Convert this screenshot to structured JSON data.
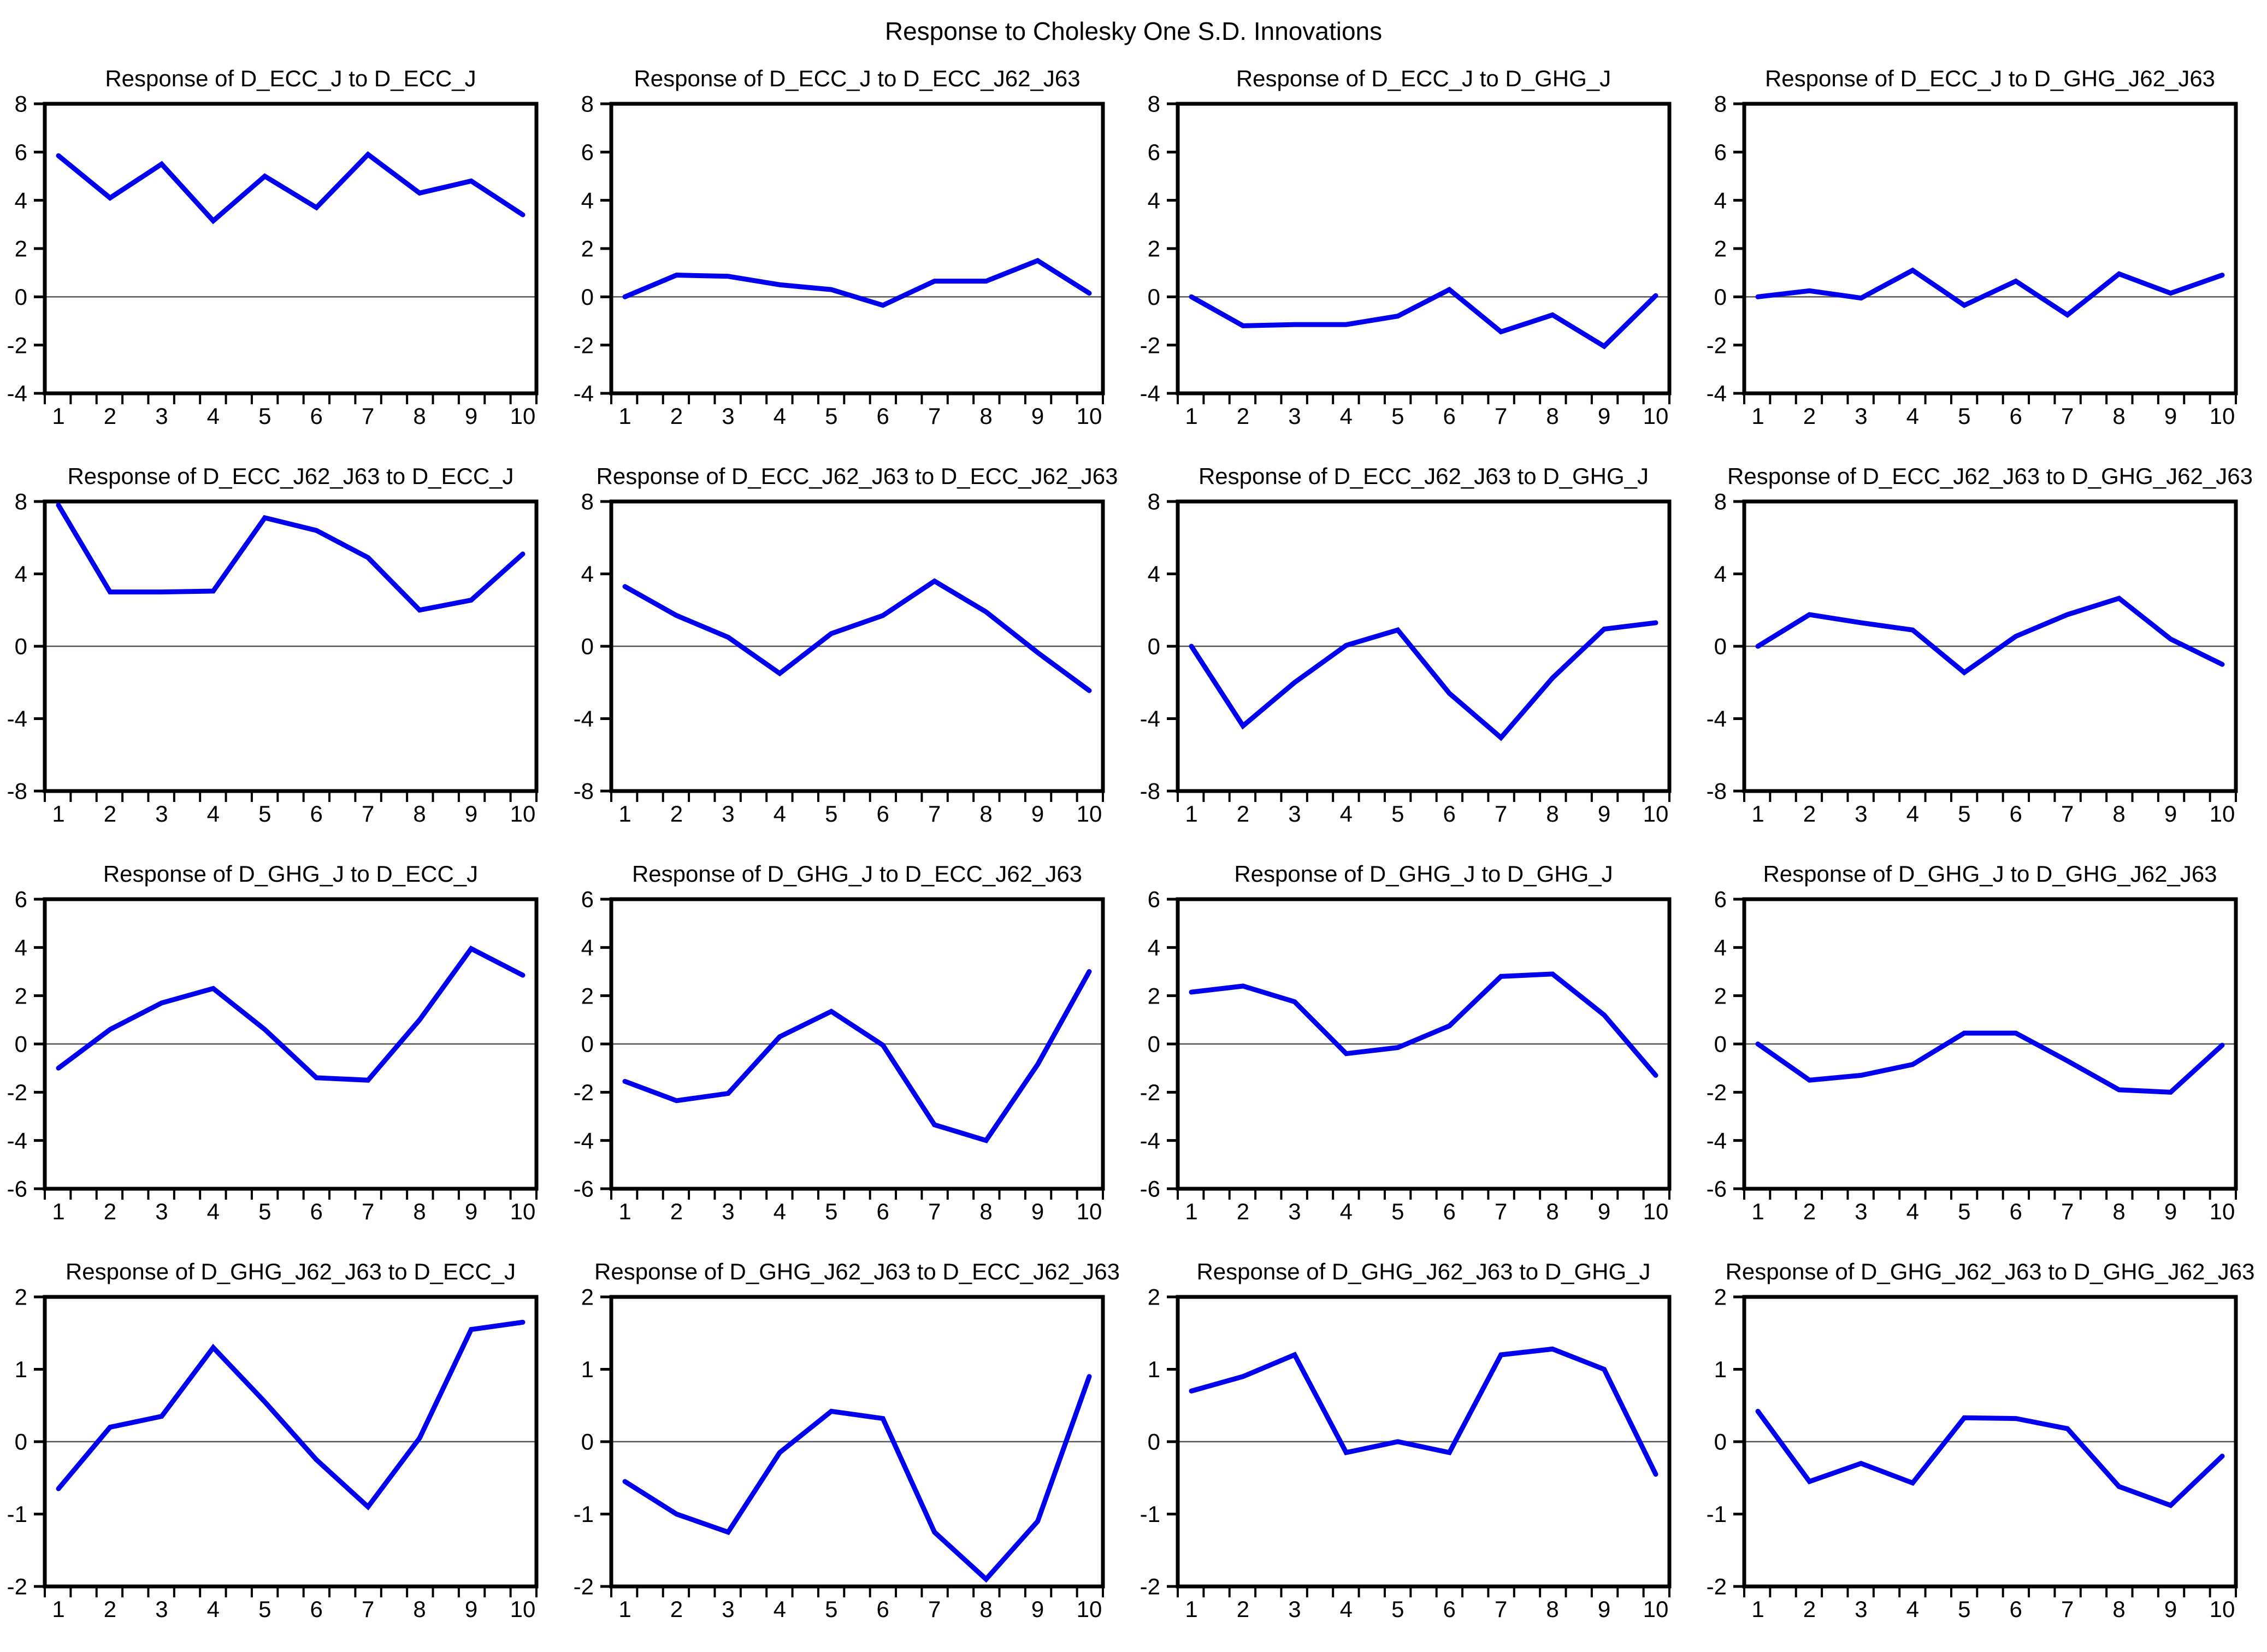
{
  "page_title": "Response to Cholesky One S.D. Innovations",
  "colors": {
    "line": "#0000EE",
    "axis": "#000000",
    "zero_line": "#555555",
    "background": "#FFFFFF",
    "text": "#000000"
  },
  "layout": {
    "rows": 4,
    "cols": 4,
    "legend": "none",
    "grid_lines": "off"
  },
  "x_axis": {
    "ticks": [
      1,
      2,
      3,
      4,
      5,
      6,
      7,
      8,
      9,
      10
    ]
  },
  "chart_data": [
    {
      "type": "line",
      "title": "Response of D_ECC_J to D_ECC_J",
      "x": [
        1,
        2,
        3,
        4,
        5,
        6,
        7,
        8,
        9,
        10
      ],
      "values": [
        5.85,
        4.1,
        5.5,
        3.15,
        5.0,
        3.7,
        5.9,
        4.3,
        4.8,
        3.4
      ],
      "ylim": [
        -4,
        8
      ],
      "yticks": [
        8,
        6,
        4,
        2,
        0,
        -2,
        -4
      ],
      "zero_line": true
    },
    {
      "type": "line",
      "title": "Response of D_ECC_J to D_ECC_J62_J63",
      "x": [
        1,
        2,
        3,
        4,
        5,
        6,
        7,
        8,
        9,
        10
      ],
      "values": [
        0.0,
        0.9,
        0.85,
        0.5,
        0.3,
        -0.35,
        0.65,
        0.65,
        1.5,
        0.15
      ],
      "ylim": [
        -4,
        8
      ],
      "yticks": [
        8,
        6,
        4,
        2,
        0,
        -2,
        -4
      ],
      "zero_line": true
    },
    {
      "type": "line",
      "title": "Response of D_ECC_J to D_GHG_J",
      "x": [
        1,
        2,
        3,
        4,
        5,
        6,
        7,
        8,
        9,
        10
      ],
      "values": [
        0.0,
        -1.2,
        -1.15,
        -1.15,
        -0.8,
        0.3,
        -1.45,
        -0.75,
        -2.05,
        0.05
      ],
      "ylim": [
        -4,
        8
      ],
      "yticks": [
        8,
        6,
        4,
        2,
        0,
        -2,
        -4
      ],
      "zero_line": true
    },
    {
      "type": "line",
      "title": "Response of D_ECC_J to D_GHG_J62_J63",
      "x": [
        1,
        2,
        3,
        4,
        5,
        6,
        7,
        8,
        9,
        10
      ],
      "values": [
        0.0,
        0.25,
        -0.05,
        1.1,
        -0.35,
        0.65,
        -0.75,
        0.95,
        0.15,
        0.9
      ],
      "ylim": [
        -4,
        8
      ],
      "yticks": [
        8,
        6,
        4,
        2,
        0,
        -2,
        -4
      ],
      "zero_line": true
    },
    {
      "type": "line",
      "title": "Response of D_ECC_J62_J63 to D_ECC_J",
      "x": [
        1,
        2,
        3,
        4,
        5,
        6,
        7,
        8,
        9,
        10
      ],
      "values": [
        7.8,
        3.0,
        3.0,
        3.05,
        7.1,
        6.4,
        4.9,
        2.0,
        2.55,
        5.1
      ],
      "ylim": [
        -8,
        8
      ],
      "yticks": [
        8,
        4,
        0,
        -4,
        -8
      ],
      "zero_line": true
    },
    {
      "type": "line",
      "title": "Response of D_ECC_J62_J63 to D_ECC_J62_J63",
      "x": [
        1,
        2,
        3,
        4,
        5,
        6,
        7,
        8,
        9,
        10
      ],
      "values": [
        3.3,
        1.7,
        0.5,
        -1.5,
        0.7,
        1.7,
        3.6,
        1.9,
        -0.35,
        -2.45
      ],
      "ylim": [
        -8,
        8
      ],
      "yticks": [
        8,
        4,
        0,
        -4,
        -8
      ],
      "zero_line": true
    },
    {
      "type": "line",
      "title": "Response of D_ECC_J62_J63 to D_GHG_J",
      "x": [
        1,
        2,
        3,
        4,
        5,
        6,
        7,
        8,
        9,
        10
      ],
      "values": [
        0.0,
        -4.4,
        -2.0,
        0.05,
        0.9,
        -2.6,
        -5.05,
        -1.75,
        0.95,
        1.3
      ],
      "ylim": [
        -8,
        8
      ],
      "yticks": [
        8,
        4,
        0,
        -4,
        -8
      ],
      "zero_line": true
    },
    {
      "type": "line",
      "title": "Response of D_ECC_J62_J63 to D_GHG_J62_J63",
      "x": [
        1,
        2,
        3,
        4,
        5,
        6,
        7,
        8,
        9,
        10
      ],
      "values": [
        0.0,
        1.75,
        1.3,
        0.9,
        -1.45,
        0.55,
        1.75,
        2.65,
        0.4,
        -1.0
      ],
      "ylim": [
        -8,
        8
      ],
      "yticks": [
        8,
        4,
        0,
        -4,
        -8
      ],
      "zero_line": true
    },
    {
      "type": "line",
      "title": "Response of D_GHG_J to D_ECC_J",
      "x": [
        1,
        2,
        3,
        4,
        5,
        6,
        7,
        8,
        9,
        10
      ],
      "values": [
        -1.0,
        0.6,
        1.7,
        2.3,
        0.6,
        -1.4,
        -1.5,
        1.0,
        3.95,
        2.85
      ],
      "ylim": [
        -6,
        6
      ],
      "yticks": [
        6,
        4,
        2,
        0,
        -2,
        -4,
        -6
      ],
      "zero_line": true
    },
    {
      "type": "line",
      "title": "Response of D_GHG_J to D_ECC_J62_J63",
      "x": [
        1,
        2,
        3,
        4,
        5,
        6,
        7,
        8,
        9,
        10
      ],
      "values": [
        -1.55,
        -2.35,
        -2.05,
        0.3,
        1.35,
        -0.05,
        -3.35,
        -4.0,
        -0.85,
        3.0
      ],
      "ylim": [
        -6,
        6
      ],
      "yticks": [
        6,
        4,
        2,
        0,
        -2,
        -4,
        -6
      ],
      "zero_line": true
    },
    {
      "type": "line",
      "title": "Response of D_GHG_J to D_GHG_J",
      "x": [
        1,
        2,
        3,
        4,
        5,
        6,
        7,
        8,
        9,
        10
      ],
      "values": [
        2.15,
        2.4,
        1.75,
        -0.4,
        -0.15,
        0.75,
        2.8,
        2.9,
        1.2,
        -1.3
      ],
      "ylim": [
        -6,
        6
      ],
      "yticks": [
        6,
        4,
        2,
        0,
        -2,
        -4,
        -6
      ],
      "zero_line": true
    },
    {
      "type": "line",
      "title": "Response of D_GHG_J to D_GHG_J62_J63",
      "x": [
        1,
        2,
        3,
        4,
        5,
        6,
        7,
        8,
        9,
        10
      ],
      "values": [
        0.0,
        -1.5,
        -1.3,
        -0.85,
        0.45,
        0.45,
        -0.7,
        -1.9,
        -2.0,
        -0.05
      ],
      "ylim": [
        -6,
        6
      ],
      "yticks": [
        6,
        4,
        2,
        0,
        -2,
        -4,
        -6
      ],
      "zero_line": true
    },
    {
      "type": "line",
      "title": "Response of D_GHG_J62_J63 to D_ECC_J",
      "x": [
        1,
        2,
        3,
        4,
        5,
        6,
        7,
        8,
        9,
        10
      ],
      "values": [
        -0.65,
        0.2,
        0.35,
        1.3,
        0.55,
        -0.25,
        -0.9,
        0.05,
        1.55,
        1.65
      ],
      "ylim": [
        -2,
        2
      ],
      "yticks": [
        2,
        1,
        0,
        -1,
        -2
      ],
      "zero_line": true
    },
    {
      "type": "line",
      "title": "Response of D_GHG_J62_J63 to D_ECC_J62_J63",
      "x": [
        1,
        2,
        3,
        4,
        5,
        6,
        7,
        8,
        9,
        10
      ],
      "values": [
        -0.55,
        -1.0,
        -1.25,
        -0.15,
        0.42,
        0.32,
        -1.25,
        -1.9,
        -1.1,
        0.9
      ],
      "ylim": [
        -2,
        2
      ],
      "yticks": [
        2,
        1,
        0,
        -1,
        -2
      ],
      "zero_line": true
    },
    {
      "type": "line",
      "title": "Response of D_GHG_J62_J63 to D_GHG_J",
      "x": [
        1,
        2,
        3,
        4,
        5,
        6,
        7,
        8,
        9,
        10
      ],
      "values": [
        0.7,
        0.9,
        1.2,
        -0.15,
        0.0,
        -0.15,
        1.2,
        1.28,
        1.0,
        -0.45
      ],
      "ylim": [
        -2,
        2
      ],
      "yticks": [
        2,
        1,
        0,
        -1,
        -2
      ],
      "zero_line": true
    },
    {
      "type": "line",
      "title": "Response of D_GHG_J62_J63 to D_GHG_J62_J63",
      "x": [
        1,
        2,
        3,
        4,
        5,
        6,
        7,
        8,
        9,
        10
      ],
      "values": [
        0.42,
        -0.55,
        -0.3,
        -0.57,
        0.33,
        0.32,
        0.18,
        -0.62,
        -0.88,
        -0.2
      ],
      "ylim": [
        -2,
        2
      ],
      "yticks": [
        2,
        1,
        0,
        -1,
        -2
      ],
      "zero_line": true
    }
  ]
}
